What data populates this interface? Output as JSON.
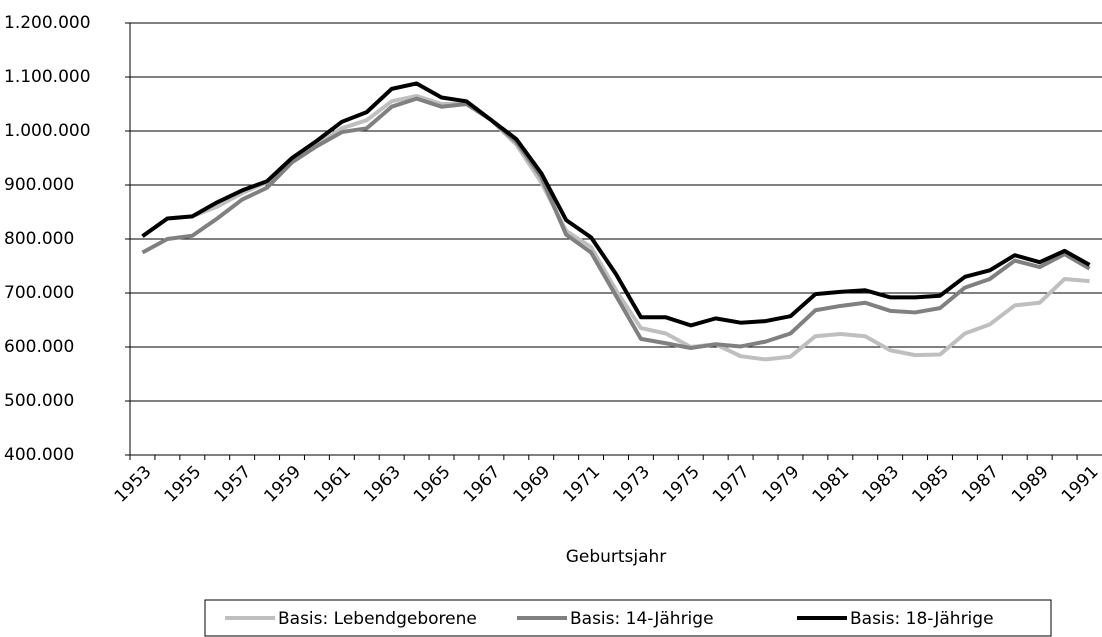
{
  "chart_data": {
    "type": "line",
    "x_label": "Geburtsjahr",
    "categories": [
      "1953",
      null,
      "1955",
      null,
      "1957",
      null,
      "1959",
      null,
      "1961",
      null,
      "1963",
      null,
      "1965",
      null,
      "1967",
      null,
      "1969",
      null,
      "1971",
      null,
      "1973",
      null,
      "1975",
      null,
      "1977",
      null,
      "1979",
      null,
      "1981",
      null,
      "1983",
      null,
      "1985",
      null,
      "1987",
      null,
      "1989",
      null,
      "1991"
    ],
    "series": [
      {
        "name": "Basis: Lebendgeborene",
        "color": "#bfbfbf",
        "values": [
          805000,
          838000,
          842000,
          860000,
          885000,
          905000,
          945000,
          975000,
          1005000,
          1020000,
          1055000,
          1065000,
          1050000,
          1050000,
          1020000,
          975000,
          905000,
          815000,
          785000,
          705000,
          635000,
          625000,
          600000,
          605000,
          583000,
          577000,
          582000,
          620000,
          624000,
          620000,
          594000,
          585000,
          586000,
          625000,
          642000,
          677000,
          682000,
          726000,
          722000
        ]
      },
      {
        "name": "Basis: 14-Jährige",
        "color": "#808080",
        "values": [
          775000,
          800000,
          806000,
          838000,
          873000,
          895000,
          942000,
          972000,
          998000,
          1005000,
          1045000,
          1060000,
          1045000,
          1050000,
          1020000,
          980000,
          915000,
          808000,
          775000,
          695000,
          615000,
          607000,
          598000,
          605000,
          601000,
          610000,
          625000,
          668000,
          676000,
          682000,
          667000,
          664000,
          672000,
          710000,
          726000,
          760000,
          748000,
          772000,
          745000
        ]
      },
      {
        "name": "Basis: 18-Jährige",
        "color": "#000000",
        "values": [
          805000,
          838000,
          842000,
          868000,
          890000,
          907000,
          950000,
          982000,
          1017000,
          1035000,
          1078000,
          1088000,
          1062000,
          1055000,
          1020000,
          985000,
          922000,
          835000,
          803000,
          735000,
          655000,
          655000,
          640000,
          653000,
          645000,
          648000,
          657000,
          698000,
          702000,
          705000,
          692000,
          692000,
          695000,
          730000,
          742000,
          770000,
          757000,
          778000,
          752000
        ]
      }
    ],
    "ylim": [
      400000,
      1200000
    ],
    "yticks": [
      {
        "value": 400000,
        "label": "400.000"
      },
      {
        "value": 500000,
        "label": "500.000"
      },
      {
        "value": 600000,
        "label": "600.000"
      },
      {
        "value": 700000,
        "label": "700.000"
      },
      {
        "value": 800000,
        "label": "800.000"
      },
      {
        "value": 900000,
        "label": "900.000"
      },
      {
        "value": 1000000,
        "label": "1.000.000"
      },
      {
        "value": 1100000,
        "label": "1.100.000"
      },
      {
        "value": 1200000,
        "label": "1.200.000"
      }
    ],
    "grid": true,
    "legend": "bottom"
  }
}
